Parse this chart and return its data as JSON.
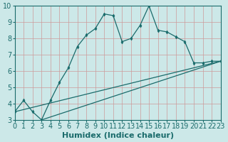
{
  "xlabel": "Humidex (Indice chaleur)",
  "background_color": "#cce8e8",
  "grid_color": "#cc9999",
  "line_color": "#1a6b6b",
  "xlim": [
    0,
    23
  ],
  "ylim": [
    3,
    10
  ],
  "yticks": [
    3,
    4,
    5,
    6,
    7,
    8,
    9,
    10
  ],
  "xticks": [
    0,
    1,
    2,
    3,
    4,
    5,
    6,
    7,
    8,
    9,
    10,
    11,
    12,
    13,
    14,
    15,
    16,
    17,
    18,
    19,
    20,
    21,
    22,
    23
  ],
  "line1_x": [
    0,
    1,
    2,
    3,
    4,
    5,
    6,
    7,
    8,
    9,
    10,
    11,
    12,
    13,
    14,
    15,
    16,
    17,
    18,
    19,
    20,
    21,
    22,
    23
  ],
  "line1_y": [
    3.5,
    4.2,
    3.5,
    3.0,
    4.2,
    5.3,
    6.2,
    7.5,
    8.2,
    8.6,
    9.5,
    9.4,
    7.8,
    8.0,
    8.8,
    10.0,
    8.5,
    8.4,
    8.1,
    7.8,
    6.5,
    6.5,
    6.6,
    6.6
  ],
  "line2_x": [
    0,
    23
  ],
  "line2_y": [
    3.5,
    6.6
  ],
  "line3_x": [
    3,
    23
  ],
  "line3_y": [
    3.0,
    6.6
  ],
  "xlabel_fontsize": 8,
  "tick_fontsize": 7
}
